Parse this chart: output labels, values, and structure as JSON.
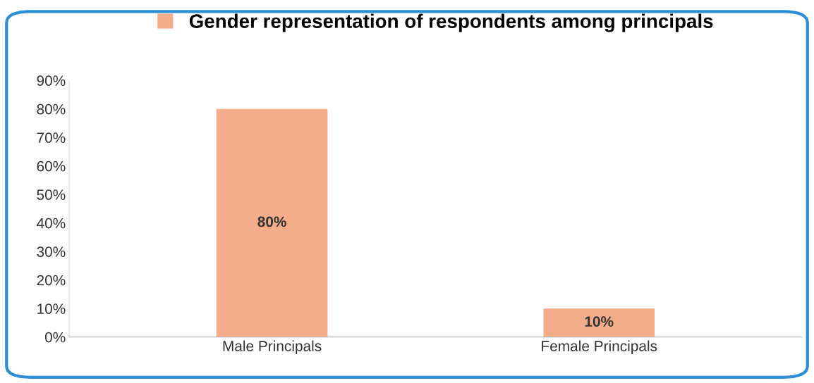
{
  "chart_data": {
    "type": "bar",
    "categories": [
      "Male Principals",
      "Female Principals"
    ],
    "series": [
      {
        "name": "Gender representation of respondents among principals",
        "color": "#f4ad8a",
        "values": [
          80,
          10
        ],
        "value_labels": [
          "80%",
          "10%"
        ]
      }
    ],
    "ylim": [
      0,
      90
    ],
    "yticks": [
      {
        "value": 0,
        "label": "0%"
      },
      {
        "value": 10,
        "label": "10%"
      },
      {
        "value": 20,
        "label": "20%"
      },
      {
        "value": 30,
        "label": "30%"
      },
      {
        "value": 40,
        "label": "40%"
      },
      {
        "value": 50,
        "label": "50%"
      },
      {
        "value": 60,
        "label": "60%"
      },
      {
        "value": 70,
        "label": "70%"
      },
      {
        "value": 80,
        "label": "80%"
      },
      {
        "value": 90,
        "label": "90%"
      }
    ],
    "grid": false,
    "legend": "top"
  }
}
